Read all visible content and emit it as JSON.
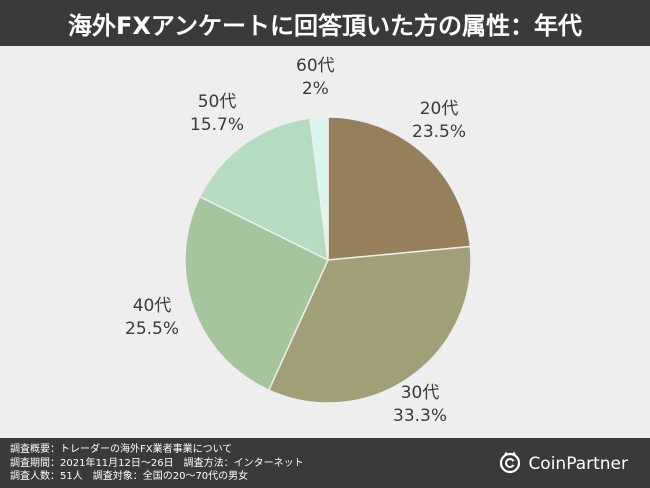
{
  "header": {
    "title": "海外FXアンケートに回答頂いた方の属性：年代"
  },
  "chart_data": {
    "type": "pie",
    "title": "海外FXアンケートに回答頂いた方の属性：年代",
    "slices": [
      {
        "label": "20代",
        "value": 23.5,
        "value_label": "23.5%",
        "color": "#967f5b"
      },
      {
        "label": "30代",
        "value": 33.3,
        "value_label": "33.3%",
        "color": "#a09f78"
      },
      {
        "label": "40代",
        "value": 25.5,
        "value_label": "25.5%",
        "color": "#a5c59c"
      },
      {
        "label": "50代",
        "value": 15.7,
        "value_label": "15.7%",
        "color": "#b6dcc0"
      },
      {
        "label": "60代",
        "value": 2,
        "value_label": "2%",
        "color": "#d9f5ee"
      }
    ],
    "start": "top",
    "direction": "clockwise"
  },
  "footer": {
    "lines": [
      "調査概要：トレーダーの海外FX業者事業について",
      "調査期間：2021年11月12日〜26日　調査方法：インターネット",
      "調査人数：51人　調査対象：全国の20〜70代の男女"
    ],
    "brand": "CoinPartner",
    "brand_icon": "coinpartner-logo-icon"
  }
}
